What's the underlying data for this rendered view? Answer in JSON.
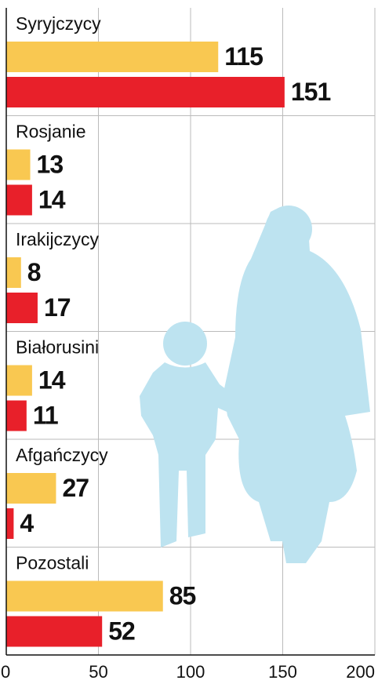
{
  "chart_data": {
    "type": "bar",
    "orientation": "horizontal",
    "categories": [
      "Syryjczycy",
      "Rosjanie",
      "Irakijczycy",
      "Białorusini",
      "Afgańczycy",
      "Pozostali"
    ],
    "series": [
      {
        "color": "#f9c851",
        "values": [
          115,
          13,
          8,
          14,
          27,
          85
        ]
      },
      {
        "color": "#e8202a",
        "values": [
          151,
          14,
          17,
          11,
          4,
          52
        ]
      }
    ],
    "xlim": [
      0,
      200
    ],
    "xticks": [
      0,
      50,
      100,
      150,
      200
    ],
    "grid": true
  }
}
